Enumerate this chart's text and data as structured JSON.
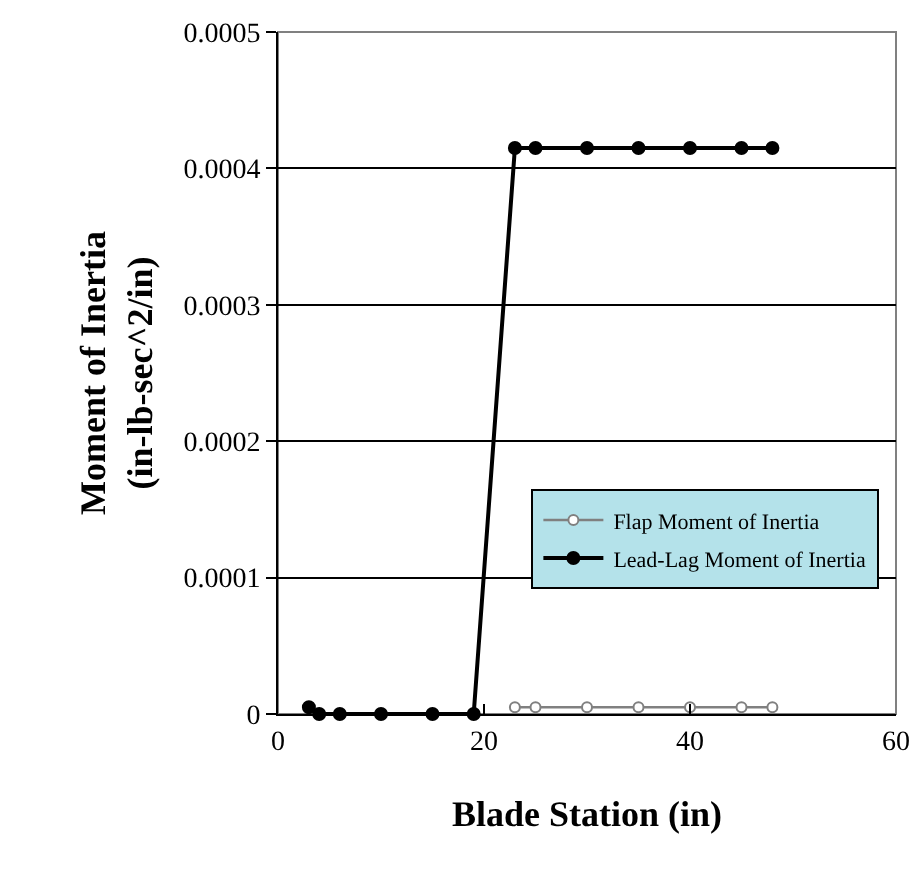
{
  "chart_data": {
    "type": "line",
    "xlabel": "Blade Station (in)",
    "ylabel": "Moment of Inertia\n(in-lb-sec^2/in)",
    "series": [
      {
        "name": "Flap Moment of Inertia",
        "color": "#808080",
        "marker": "circle",
        "x": [
          23,
          25,
          30,
          35,
          40,
          45,
          48
        ],
        "values": [
          5e-06,
          5e-06,
          5e-06,
          5e-06,
          5e-06,
          5e-06,
          5e-06
        ]
      },
      {
        "name": "Lead-Lag Moment of Inertia",
        "color": "#000000",
        "marker": "circle",
        "x": [
          3,
          4,
          6,
          10,
          15,
          19,
          23,
          25,
          30,
          35,
          40,
          45,
          48
        ],
        "values": [
          5e-06,
          0,
          0,
          0,
          0,
          0,
          0.000415,
          0.000415,
          0.000415,
          0.000415,
          0.000415,
          0.000415,
          0.000415
        ]
      }
    ],
    "xlim": [
      0,
      60
    ],
    "xticks": [
      0,
      20,
      40,
      60
    ],
    "ylim": [
      0,
      0.0005
    ],
    "yticks": [
      0,
      0.0001,
      0.0002,
      0.0003,
      0.0004,
      0.0005
    ],
    "grid": "y",
    "legend": "right"
  }
}
